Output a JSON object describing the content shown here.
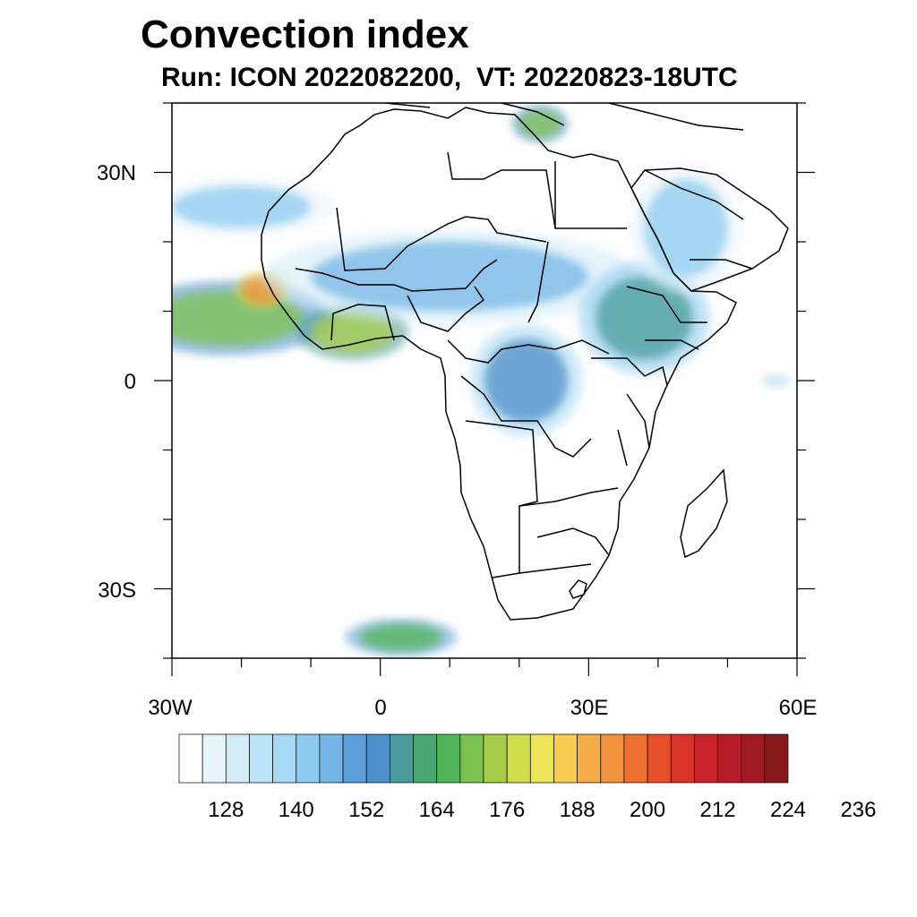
{
  "title": "Convection index",
  "subtitle": "Run: ICON 2022082200,  VT: 20220823-18UTC",
  "map": {
    "lon_range": [
      -30,
      60
    ],
    "lat_range": [
      -40,
      40
    ],
    "x_tick_labels": [
      "30W",
      "0",
      "30E",
      "60E"
    ],
    "y_tick_labels": [
      "30N",
      "0",
      "30S"
    ],
    "blobs": [
      {
        "name": "west-atlantic-coast-convection",
        "lon": -22,
        "lat": 9,
        "rx": 11,
        "ry": 4,
        "level": 164
      },
      {
        "name": "senegal-hotspot",
        "lon": -17,
        "lat": 13,
        "rx": 3,
        "ry": 2,
        "level": 188
      },
      {
        "name": "ivory-coast-ghana-convection",
        "lon": -4,
        "lat": 7,
        "rx": 6,
        "ry": 3,
        "level": 168
      },
      {
        "name": "sahel-belt-convection",
        "lon": 10,
        "lat": 15,
        "rx": 20,
        "ry": 5,
        "level": 140
      },
      {
        "name": "central-africa-convection",
        "lon": 21,
        "lat": 0,
        "rx": 6,
        "ry": 6,
        "level": 148
      },
      {
        "name": "ethiopia-convection",
        "lon": 38,
        "lat": 9,
        "rx": 7,
        "ry": 6,
        "level": 152
      },
      {
        "name": "arabia-convection",
        "lon": 44,
        "lat": 22,
        "rx": 6,
        "ry": 7,
        "level": 136
      },
      {
        "name": "aegean-convection",
        "lon": 23,
        "lat": 37,
        "rx": 3,
        "ry": 2,
        "level": 164
      },
      {
        "name": "morocco-atlantic-band",
        "lon": -20,
        "lat": 25,
        "rx": 10,
        "ry": 3,
        "level": 134
      },
      {
        "name": "south-atlantic-streak",
        "lon": 3,
        "lat": -37,
        "rx": 6,
        "ry": 2,
        "level": 160
      },
      {
        "name": "east-indian-ocean-patch",
        "lon": 57,
        "lat": 0,
        "rx": 2,
        "ry": 1,
        "level": 128
      }
    ]
  },
  "colorbar": {
    "colors": [
      "#ffffff",
      "#e8f4fb",
      "#d2ecf9",
      "#bde3f6",
      "#a6d9f4",
      "#8ccbef",
      "#75b6e6",
      "#5d9fd8",
      "#4d8fc9",
      "#4a9c9c",
      "#48a772",
      "#50b45a",
      "#7cc251",
      "#a7cd4b",
      "#cfdd4d",
      "#eee45a",
      "#f8cc52",
      "#f6ad47",
      "#f4913c",
      "#ee6e2f",
      "#e54f2a",
      "#d93229",
      "#c8232a",
      "#b41d28",
      "#a01a22",
      "#881a1c"
    ],
    "tick_labels": [
      "128",
      "140",
      "152",
      "164",
      "176",
      "188",
      "200",
      "212",
      "224",
      "236"
    ]
  }
}
